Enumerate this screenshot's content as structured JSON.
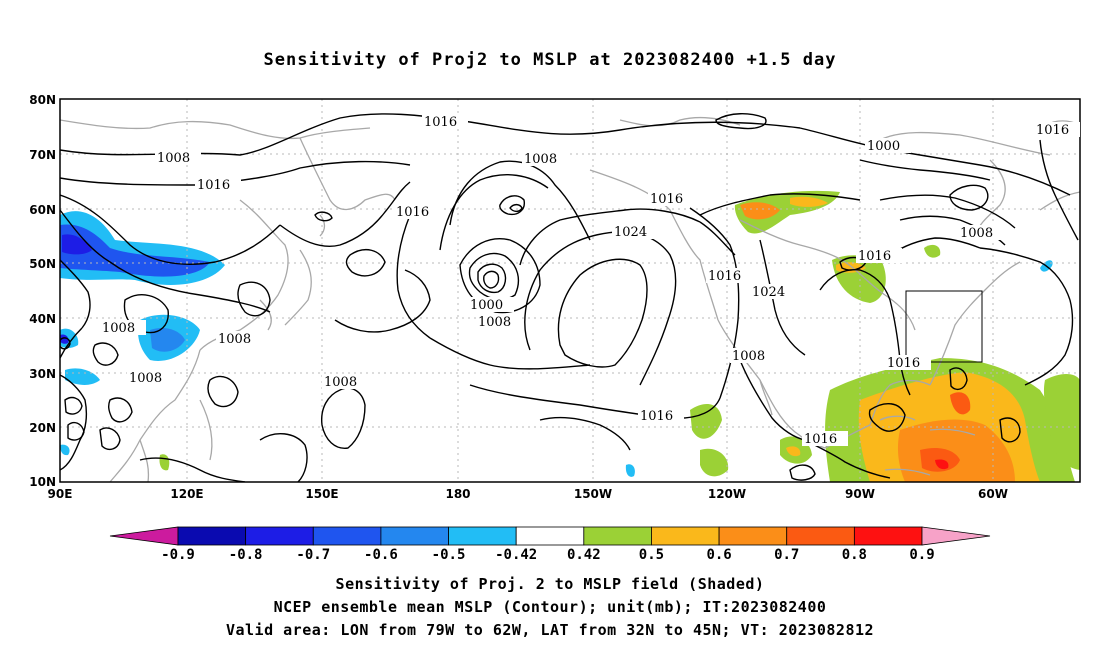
{
  "title": "Sensitivity of Proj2 to MSLP at 2023082400 +1.5 day",
  "lat_labels": [
    "80N",
    "70N",
    "60N",
    "50N",
    "40N",
    "30N",
    "20N",
    "10N"
  ],
  "lon_labels": [
    "90E",
    "120E",
    "150E",
    "180",
    "150W",
    "120W",
    "90W",
    "60W"
  ],
  "isobar_labels": {
    "l1016a": "1016",
    "l1008a": "1008",
    "l1016b": "1016",
    "l1016c": "1016",
    "l1008b": "1008",
    "l1016d": "1016",
    "l1024a": "1024",
    "l1000a": "1000",
    "l1008c": "1008",
    "l1008d": "1008",
    "l1008e": "1008",
    "l1008f": "1008",
    "l1016e": "1016",
    "l1024b": "1024",
    "l1008g": "1008",
    "l1016f": "1016",
    "l1016g": "1016",
    "l1000b": "1000",
    "l1008h": "1008",
    "l1016h": "1016",
    "l1016i": "1016",
    "l1008i": "1008"
  },
  "colorbar": {
    "labels": [
      "-0.9",
      "-0.8",
      "-0.7",
      "-0.6",
      "-0.5",
      "-0.42",
      "0.42",
      "0.5",
      "0.6",
      "0.7",
      "0.8",
      "0.9"
    ],
    "colors": [
      "#cc1b9e",
      "#0a0ab0",
      "#1d1de6",
      "#1f55ef",
      "#2487ef",
      "#22bdf5",
      "#ffffff",
      "#9bd136",
      "#fab81b",
      "#fb8e18",
      "#fb5a12",
      "#fe1111",
      "#f7a2c8"
    ]
  },
  "captions": {
    "line1": "Sensitivity of Proj. 2 to MSLP field (Shaded)",
    "line2": "NCEP ensemble mean MSLP (Contour); unit(mb); IT:2023082400",
    "line3": "Valid area: LON from 79W to 62W, LAT from 32N to 45N; VT: 2023082812"
  },
  "valid_area": {
    "lon_min": -79,
    "lon_max": -62,
    "lat_min": 32,
    "lat_max": 45
  }
}
